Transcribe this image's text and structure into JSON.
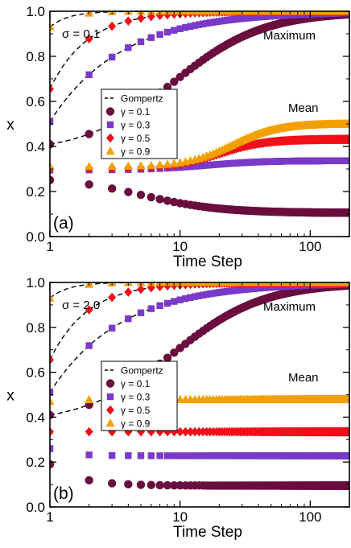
{
  "colors": {
    "g01": "#6a0d3f",
    "g03": "#7b39c9",
    "g05": "#f0101a",
    "g09": "#f2a000",
    "axis": "#000000",
    "fit": "#000000"
  },
  "chart_data": [
    {
      "type": "scatter",
      "panel_label": "(a)",
      "sigma_label": "σ = 0.1",
      "xlabel": "Time Step",
      "ylabel": "x",
      "xscale": "log",
      "xlim": [
        1,
        200
      ],
      "ylim": [
        0,
        1
      ],
      "xticks": [
        {
          "v": 1,
          "label": "1"
        },
        {
          "v": 10,
          "label": "10"
        },
        {
          "v": 100,
          "label": "100"
        }
      ],
      "yticks": [
        {
          "v": 0,
          "label": "0.0"
        },
        {
          "v": 0.2,
          "label": "0.2"
        },
        {
          "v": 0.4,
          "label": "0.4"
        },
        {
          "v": 0.6,
          "label": "0.6"
        },
        {
          "v": 0.8,
          "label": "0.8"
        },
        {
          "v": 1.0,
          "label": "1.0"
        }
      ],
      "annotations": [
        {
          "text": "Maximum",
          "near": "upper-right"
        },
        {
          "text": "Mean",
          "near": "middle-right"
        }
      ],
      "legend": {
        "placement": "center-left",
        "entries": [
          {
            "label": "Gompertz",
            "kind": "dashed-line",
            "color": "fit"
          },
          {
            "label": "γ = 0.1",
            "kind": "circle",
            "color": "g01"
          },
          {
            "label": "γ = 0.3",
            "kind": "square",
            "color": "g03"
          },
          {
            "label": "γ = 0.5",
            "kind": "diamond",
            "color": "g05"
          },
          {
            "label": "γ = 0.9",
            "kind": "triangle",
            "color": "g09"
          }
        ]
      },
      "series": [
        {
          "name": "γ = 0.1",
          "stat": "max",
          "marker": "circle",
          "color": "g01",
          "model": {
            "form": "sigmoid",
            "a": 0.371,
            "b": 1.0,
            "c": 0.95,
            "s": 0.8
          }
        },
        {
          "name": "γ = 0.3",
          "stat": "max",
          "marker": "square",
          "color": "g03",
          "model": {
            "form": "power",
            "a": 0.51,
            "b": 1.0,
            "c": 1.0,
            "s": 0.8
          }
        },
        {
          "name": "γ = 0.5",
          "stat": "max",
          "marker": "diamond",
          "color": "g05",
          "model": {
            "form": "power",
            "a": 0.655,
            "b": 1.0,
            "c": 1.0,
            "s": 1.5
          }
        },
        {
          "name": "γ = 0.9",
          "stat": "max",
          "marker": "triangle",
          "color": "g09",
          "model": {
            "form": "power",
            "a": 0.93,
            "b": 1.0,
            "c": 1.0,
            "s": 3.0
          }
        },
        {
          "name": "γ = 0.1",
          "stat": "mean",
          "marker": "circle",
          "color": "g01",
          "model": {
            "form": "sigmoid",
            "a": 0.265,
            "b": 0.105,
            "c": 0.7,
            "s": 0.7
          }
        },
        {
          "name": "γ = 0.3",
          "stat": "mean",
          "marker": "square",
          "color": "g03",
          "model": {
            "form": "sigmoid",
            "a": 0.295,
            "b": 0.337,
            "c": 1.2,
            "s": 0.5
          }
        },
        {
          "name": "γ = 0.5",
          "stat": "mean",
          "marker": "diamond",
          "color": "g05",
          "model": {
            "form": "sigmoid",
            "a": 0.3,
            "b": 0.432,
            "c": 1.3,
            "s": 0.4
          }
        },
        {
          "name": "γ = 0.9",
          "stat": "mean",
          "marker": "triangle",
          "color": "g09",
          "model": {
            "form": "sigmoid",
            "a": 0.31,
            "b": 0.5,
            "c": 1.4,
            "s": 0.4
          }
        }
      ]
    },
    {
      "type": "scatter",
      "panel_label": "(b)",
      "sigma_label": "σ = 2.0",
      "xlabel": "Time Step",
      "ylabel": "x",
      "xscale": "log",
      "xlim": [
        1,
        200
      ],
      "ylim": [
        0,
        1
      ],
      "xticks": [
        {
          "v": 1,
          "label": "1"
        },
        {
          "v": 10,
          "label": "10"
        },
        {
          "v": 100,
          "label": "100"
        }
      ],
      "yticks": [
        {
          "v": 0,
          "label": "0.0"
        },
        {
          "v": 0.2,
          "label": "0.2"
        },
        {
          "v": 0.4,
          "label": "0.4"
        },
        {
          "v": 0.6,
          "label": "0.6"
        },
        {
          "v": 0.8,
          "label": "0.8"
        },
        {
          "v": 1.0,
          "label": "1.0"
        }
      ],
      "annotations": [
        {
          "text": "Maximum",
          "near": "upper-right"
        },
        {
          "text": "Mean",
          "near": "middle-right"
        }
      ],
      "legend": {
        "placement": "center-left",
        "entries": [
          {
            "label": "Gompertz",
            "kind": "dashed-line",
            "color": "fit"
          },
          {
            "label": "γ = 0.1",
            "kind": "circle",
            "color": "g01"
          },
          {
            "label": "γ = 0.3",
            "kind": "square",
            "color": "g03"
          },
          {
            "label": "γ = 0.5",
            "kind": "diamond",
            "color": "g05"
          },
          {
            "label": "γ = 0.9",
            "kind": "triangle",
            "color": "g09"
          }
        ]
      },
      "series": [
        {
          "name": "γ = 0.1",
          "stat": "max",
          "marker": "circle",
          "color": "g01",
          "model": {
            "form": "sigmoid",
            "a": 0.371,
            "b": 1.0,
            "c": 0.95,
            "s": 0.8
          }
        },
        {
          "name": "γ = 0.3",
          "stat": "max",
          "marker": "square",
          "color": "g03",
          "model": {
            "form": "power",
            "a": 0.51,
            "b": 1.0,
            "c": 1.0,
            "s": 0.8
          }
        },
        {
          "name": "γ = 0.5",
          "stat": "max",
          "marker": "diamond",
          "color": "g05",
          "model": {
            "form": "power",
            "a": 0.655,
            "b": 1.0,
            "c": 1.0,
            "s": 1.5
          }
        },
        {
          "name": "γ = 0.9",
          "stat": "max",
          "marker": "triangle",
          "color": "g09",
          "model": {
            "form": "power",
            "a": 0.93,
            "b": 1.0,
            "c": 1.0,
            "s": 3.0
          }
        },
        {
          "name": "γ = 0.1",
          "stat": "mean",
          "marker": "circle",
          "color": "g01",
          "model": {
            "form": "power",
            "a": 0.19,
            "b": 0.095,
            "c": 1.0,
            "s": 2.0
          }
        },
        {
          "name": "γ = 0.3",
          "stat": "mean",
          "marker": "square",
          "color": "g03",
          "model": {
            "form": "power",
            "a": 0.26,
            "b": 0.228,
            "c": 1.0,
            "s": 3.0
          }
        },
        {
          "name": "γ = 0.5",
          "stat": "mean",
          "marker": "diamond",
          "color": "g05",
          "model": {
            "form": "power",
            "a": 0.335,
            "b": 0.335,
            "c": 1.0,
            "s": 3.0
          }
        },
        {
          "name": "γ = 0.9",
          "stat": "mean",
          "marker": "triangle",
          "color": "g09",
          "model": {
            "form": "power",
            "a": 0.47,
            "b": 0.478,
            "c": 1.0,
            "s": 3.0
          }
        }
      ]
    }
  ]
}
